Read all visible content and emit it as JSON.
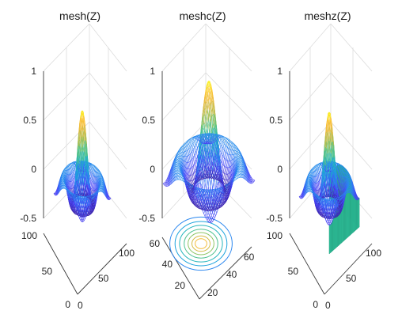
{
  "chart_data": [
    {
      "type": "surface-mesh",
      "title": "mesh(Z)",
      "function": "sinc",
      "zlim": [
        -0.5,
        1
      ],
      "z_ticks": [
        "-0.5",
        "0",
        "0.5",
        "1"
      ],
      "x_ticks": [
        "0",
        "50",
        "100"
      ],
      "y_ticks": [
        "0",
        "50",
        "100"
      ],
      "grid": true
    },
    {
      "type": "surface-mesh-contour",
      "title": "meshc(Z)",
      "function": "sinc",
      "zlim": [
        -0.5,
        1
      ],
      "z_ticks": [
        "-0.5",
        "0",
        "0.5",
        "1"
      ],
      "x_ticks": [
        "20",
        "40",
        "60"
      ],
      "y_ticks": [
        "20",
        "40",
        "60"
      ],
      "grid": true
    },
    {
      "type": "surface-mesh-curtain",
      "title": "meshz(Z)",
      "function": "sinc",
      "zlim": [
        -0.5,
        1
      ],
      "z_ticks": [
        "-0.5",
        "0",
        "0.5",
        "1"
      ],
      "x_ticks": [
        "0",
        "50",
        "100"
      ],
      "y_ticks": [
        "0",
        "50",
        "100"
      ],
      "grid": true
    }
  ],
  "colors": {
    "colormap": [
      "#3e26a8",
      "#4743f8",
      "#2c84f1",
      "#1aa7da",
      "#2bbcac",
      "#78c76f",
      "#d3bb45",
      "#fdbf3c",
      "#f9fb15"
    ],
    "curtain": "#2ec29a",
    "axis": "#3a3a3a",
    "grid": "#dcdcdc"
  }
}
